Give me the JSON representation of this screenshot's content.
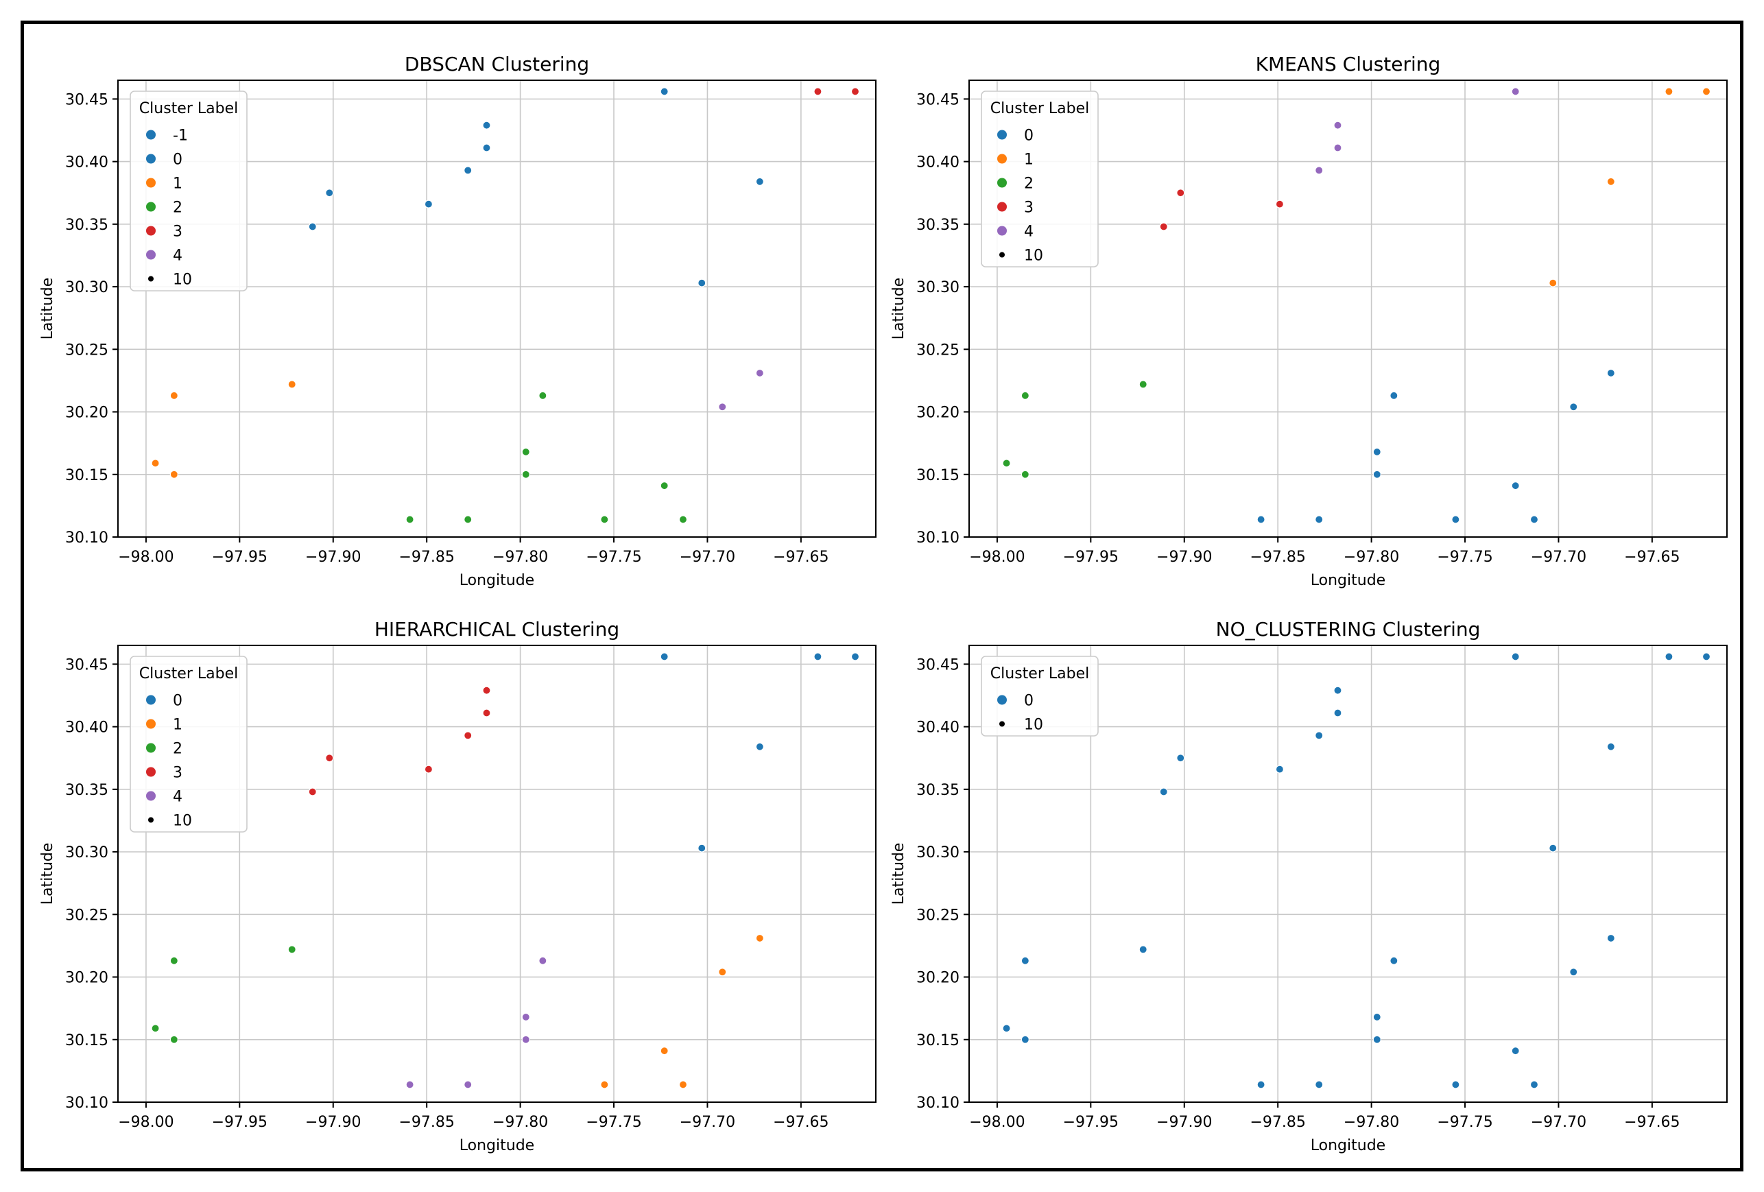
{
  "colors": {
    "0": "#1f77b4",
    "1": "#ff7f0e",
    "2": "#2ca02c",
    "3": "#d62728",
    "4": "#9467bd",
    "5": "#8c564b"
  },
  "chart_data": [
    {
      "type": "scatter",
      "title": "DBSCAN Clustering",
      "xlabel": "Longitude",
      "ylabel": "Latitude",
      "xlim": [
        -98.015,
        -97.61
      ],
      "ylim": [
        30.1,
        30.465
      ],
      "xticks": [
        -98.0,
        -97.95,
        -97.9,
        -97.85,
        -97.8,
        -97.75,
        -97.7,
        -97.65
      ],
      "xtick_labels": [
        "−98.00",
        "−97.95",
        "−97.90",
        "−97.85",
        "−97.80",
        "−97.75",
        "−97.70",
        "−97.65"
      ],
      "yticks": [
        30.1,
        30.15,
        30.2,
        30.25,
        30.3,
        30.35,
        30.4,
        30.45
      ],
      "ytick_labels": [
        "30.10",
        "30.15",
        "30.20",
        "30.25",
        "30.30",
        "30.35",
        "30.40",
        "30.45"
      ],
      "grid": true,
      "legend": {
        "title": "Cluster Label",
        "placement": "top-left",
        "entries": [
          "-1",
          "0",
          "1",
          "2",
          "3",
          "4"
        ],
        "size_entry": "10"
      },
      "points": [
        {
          "x": -97.723,
          "y": 30.456,
          "label": "-1"
        },
        {
          "x": -97.672,
          "y": 30.384,
          "label": "-1"
        },
        {
          "x": -97.703,
          "y": 30.303,
          "label": "-1"
        },
        {
          "x": -97.818,
          "y": 30.429,
          "label": "0"
        },
        {
          "x": -97.818,
          "y": 30.411,
          "label": "0"
        },
        {
          "x": -97.828,
          "y": 30.393,
          "label": "0"
        },
        {
          "x": -97.849,
          "y": 30.366,
          "label": "0"
        },
        {
          "x": -97.902,
          "y": 30.375,
          "label": "0"
        },
        {
          "x": -97.911,
          "y": 30.348,
          "label": "0"
        },
        {
          "x": -97.985,
          "y": 30.213,
          "label": "1"
        },
        {
          "x": -97.922,
          "y": 30.222,
          "label": "1"
        },
        {
          "x": -97.995,
          "y": 30.159,
          "label": "1"
        },
        {
          "x": -97.985,
          "y": 30.15,
          "label": "1"
        },
        {
          "x": -97.788,
          "y": 30.213,
          "label": "2"
        },
        {
          "x": -97.797,
          "y": 30.168,
          "label": "2"
        },
        {
          "x": -97.797,
          "y": 30.15,
          "label": "2"
        },
        {
          "x": -97.723,
          "y": 30.141,
          "label": "2"
        },
        {
          "x": -97.859,
          "y": 30.114,
          "label": "2"
        },
        {
          "x": -97.828,
          "y": 30.114,
          "label": "2"
        },
        {
          "x": -97.755,
          "y": 30.114,
          "label": "2"
        },
        {
          "x": -97.713,
          "y": 30.114,
          "label": "2"
        },
        {
          "x": -97.641,
          "y": 30.456,
          "label": "3"
        },
        {
          "x": -97.621,
          "y": 30.456,
          "label": "3"
        },
        {
          "x": -97.672,
          "y": 30.231,
          "label": "4"
        },
        {
          "x": -97.692,
          "y": 30.204,
          "label": "4"
        }
      ]
    },
    {
      "type": "scatter",
      "title": "KMEANS Clustering",
      "xlabel": "Longitude",
      "ylabel": "Latitude",
      "xlim": [
        -98.015,
        -97.61
      ],
      "ylim": [
        30.1,
        30.465
      ],
      "xticks": [
        -98.0,
        -97.95,
        -97.9,
        -97.85,
        -97.8,
        -97.75,
        -97.7,
        -97.65
      ],
      "xtick_labels": [
        "−98.00",
        "−97.95",
        "−97.90",
        "−97.85",
        "−97.80",
        "−97.75",
        "−97.70",
        "−97.65"
      ],
      "yticks": [
        30.1,
        30.15,
        30.2,
        30.25,
        30.3,
        30.35,
        30.4,
        30.45
      ],
      "ytick_labels": [
        "30.10",
        "30.15",
        "30.20",
        "30.25",
        "30.30",
        "30.35",
        "30.40",
        "30.45"
      ],
      "grid": true,
      "legend": {
        "title": "Cluster Label",
        "placement": "top-left",
        "entries": [
          "0",
          "1",
          "2",
          "3",
          "4"
        ],
        "size_entry": "10"
      },
      "points": [
        {
          "x": -97.788,
          "y": 30.213,
          "label": "0"
        },
        {
          "x": -97.797,
          "y": 30.168,
          "label": "0"
        },
        {
          "x": -97.797,
          "y": 30.15,
          "label": "0"
        },
        {
          "x": -97.723,
          "y": 30.141,
          "label": "0"
        },
        {
          "x": -97.859,
          "y": 30.114,
          "label": "0"
        },
        {
          "x": -97.828,
          "y": 30.114,
          "label": "0"
        },
        {
          "x": -97.755,
          "y": 30.114,
          "label": "0"
        },
        {
          "x": -97.713,
          "y": 30.114,
          "label": "0"
        },
        {
          "x": -97.672,
          "y": 30.231,
          "label": "0"
        },
        {
          "x": -97.692,
          "y": 30.204,
          "label": "0"
        },
        {
          "x": -97.641,
          "y": 30.456,
          "label": "1"
        },
        {
          "x": -97.621,
          "y": 30.456,
          "label": "1"
        },
        {
          "x": -97.672,
          "y": 30.384,
          "label": "1"
        },
        {
          "x": -97.703,
          "y": 30.303,
          "label": "1"
        },
        {
          "x": -97.985,
          "y": 30.213,
          "label": "2"
        },
        {
          "x": -97.922,
          "y": 30.222,
          "label": "2"
        },
        {
          "x": -97.995,
          "y": 30.159,
          "label": "2"
        },
        {
          "x": -97.985,
          "y": 30.15,
          "label": "2"
        },
        {
          "x": -97.902,
          "y": 30.375,
          "label": "3"
        },
        {
          "x": -97.911,
          "y": 30.348,
          "label": "3"
        },
        {
          "x": -97.849,
          "y": 30.366,
          "label": "3"
        },
        {
          "x": -97.723,
          "y": 30.456,
          "label": "4"
        },
        {
          "x": -97.818,
          "y": 30.429,
          "label": "4"
        },
        {
          "x": -97.818,
          "y": 30.411,
          "label": "4"
        },
        {
          "x": -97.828,
          "y": 30.393,
          "label": "4"
        }
      ]
    },
    {
      "type": "scatter",
      "title": "HIERARCHICAL Clustering",
      "xlabel": "Longitude",
      "ylabel": "Latitude",
      "xlim": [
        -98.015,
        -97.61
      ],
      "ylim": [
        30.1,
        30.465
      ],
      "xticks": [
        -98.0,
        -97.95,
        -97.9,
        -97.85,
        -97.8,
        -97.75,
        -97.7,
        -97.65
      ],
      "xtick_labels": [
        "−98.00",
        "−97.95",
        "−97.90",
        "−97.85",
        "−97.80",
        "−97.75",
        "−97.70",
        "−97.65"
      ],
      "yticks": [
        30.1,
        30.15,
        30.2,
        30.25,
        30.3,
        30.35,
        30.4,
        30.45
      ],
      "ytick_labels": [
        "30.10",
        "30.15",
        "30.20",
        "30.25",
        "30.30",
        "30.35",
        "30.40",
        "30.45"
      ],
      "grid": true,
      "legend": {
        "title": "Cluster Label",
        "placement": "top-left",
        "entries": [
          "0",
          "1",
          "2",
          "3",
          "4"
        ],
        "size_entry": "10"
      },
      "points": [
        {
          "x": -97.723,
          "y": 30.456,
          "label": "0"
        },
        {
          "x": -97.641,
          "y": 30.456,
          "label": "0"
        },
        {
          "x": -97.621,
          "y": 30.456,
          "label": "0"
        },
        {
          "x": -97.672,
          "y": 30.384,
          "label": "0"
        },
        {
          "x": -97.703,
          "y": 30.303,
          "label": "0"
        },
        {
          "x": -97.672,
          "y": 30.231,
          "label": "1"
        },
        {
          "x": -97.692,
          "y": 30.204,
          "label": "1"
        },
        {
          "x": -97.723,
          "y": 30.141,
          "label": "1"
        },
        {
          "x": -97.755,
          "y": 30.114,
          "label": "1"
        },
        {
          "x": -97.713,
          "y": 30.114,
          "label": "1"
        },
        {
          "x": -97.985,
          "y": 30.213,
          "label": "2"
        },
        {
          "x": -97.922,
          "y": 30.222,
          "label": "2"
        },
        {
          "x": -97.995,
          "y": 30.159,
          "label": "2"
        },
        {
          "x": -97.985,
          "y": 30.15,
          "label": "2"
        },
        {
          "x": -97.818,
          "y": 30.429,
          "label": "3"
        },
        {
          "x": -97.818,
          "y": 30.411,
          "label": "3"
        },
        {
          "x": -97.828,
          "y": 30.393,
          "label": "3"
        },
        {
          "x": -97.849,
          "y": 30.366,
          "label": "3"
        },
        {
          "x": -97.902,
          "y": 30.375,
          "label": "3"
        },
        {
          "x": -97.911,
          "y": 30.348,
          "label": "3"
        },
        {
          "x": -97.788,
          "y": 30.213,
          "label": "4"
        },
        {
          "x": -97.797,
          "y": 30.168,
          "label": "4"
        },
        {
          "x": -97.797,
          "y": 30.15,
          "label": "4"
        },
        {
          "x": -97.859,
          "y": 30.114,
          "label": "4"
        },
        {
          "x": -97.828,
          "y": 30.114,
          "label": "4"
        }
      ]
    },
    {
      "type": "scatter",
      "title": "NO_CLUSTERING Clustering",
      "xlabel": "Longitude",
      "ylabel": "Latitude",
      "xlim": [
        -98.015,
        -97.61
      ],
      "ylim": [
        30.1,
        30.465
      ],
      "xticks": [
        -98.0,
        -97.95,
        -97.9,
        -97.85,
        -97.8,
        -97.75,
        -97.7,
        -97.65
      ],
      "xtick_labels": [
        "−98.00",
        "−97.95",
        "−97.90",
        "−97.85",
        "−97.80",
        "−97.75",
        "−97.70",
        "−97.65"
      ],
      "yticks": [
        30.1,
        30.15,
        30.2,
        30.25,
        30.3,
        30.35,
        30.4,
        30.45
      ],
      "ytick_labels": [
        "30.10",
        "30.15",
        "30.20",
        "30.25",
        "30.30",
        "30.35",
        "30.40",
        "30.45"
      ],
      "grid": true,
      "legend": {
        "title": "Cluster Label",
        "placement": "top-left",
        "entries": [
          "0"
        ],
        "size_entry": "10"
      },
      "points": [
        {
          "x": -97.723,
          "y": 30.456,
          "label": "0"
        },
        {
          "x": -97.641,
          "y": 30.456,
          "label": "0"
        },
        {
          "x": -97.621,
          "y": 30.456,
          "label": "0"
        },
        {
          "x": -97.818,
          "y": 30.429,
          "label": "0"
        },
        {
          "x": -97.818,
          "y": 30.411,
          "label": "0"
        },
        {
          "x": -97.828,
          "y": 30.393,
          "label": "0"
        },
        {
          "x": -97.672,
          "y": 30.384,
          "label": "0"
        },
        {
          "x": -97.902,
          "y": 30.375,
          "label": "0"
        },
        {
          "x": -97.849,
          "y": 30.366,
          "label": "0"
        },
        {
          "x": -97.911,
          "y": 30.348,
          "label": "0"
        },
        {
          "x": -97.703,
          "y": 30.303,
          "label": "0"
        },
        {
          "x": -97.672,
          "y": 30.231,
          "label": "0"
        },
        {
          "x": -97.922,
          "y": 30.222,
          "label": "0"
        },
        {
          "x": -97.985,
          "y": 30.213,
          "label": "0"
        },
        {
          "x": -97.788,
          "y": 30.213,
          "label": "0"
        },
        {
          "x": -97.692,
          "y": 30.204,
          "label": "0"
        },
        {
          "x": -97.797,
          "y": 30.168,
          "label": "0"
        },
        {
          "x": -97.995,
          "y": 30.159,
          "label": "0"
        },
        {
          "x": -97.985,
          "y": 30.15,
          "label": "0"
        },
        {
          "x": -97.797,
          "y": 30.15,
          "label": "0"
        },
        {
          "x": -97.723,
          "y": 30.141,
          "label": "0"
        },
        {
          "x": -97.859,
          "y": 30.114,
          "label": "0"
        },
        {
          "x": -97.828,
          "y": 30.114,
          "label": "0"
        },
        {
          "x": -97.755,
          "y": 30.114,
          "label": "0"
        },
        {
          "x": -97.713,
          "y": 30.114,
          "label": "0"
        }
      ]
    }
  ]
}
